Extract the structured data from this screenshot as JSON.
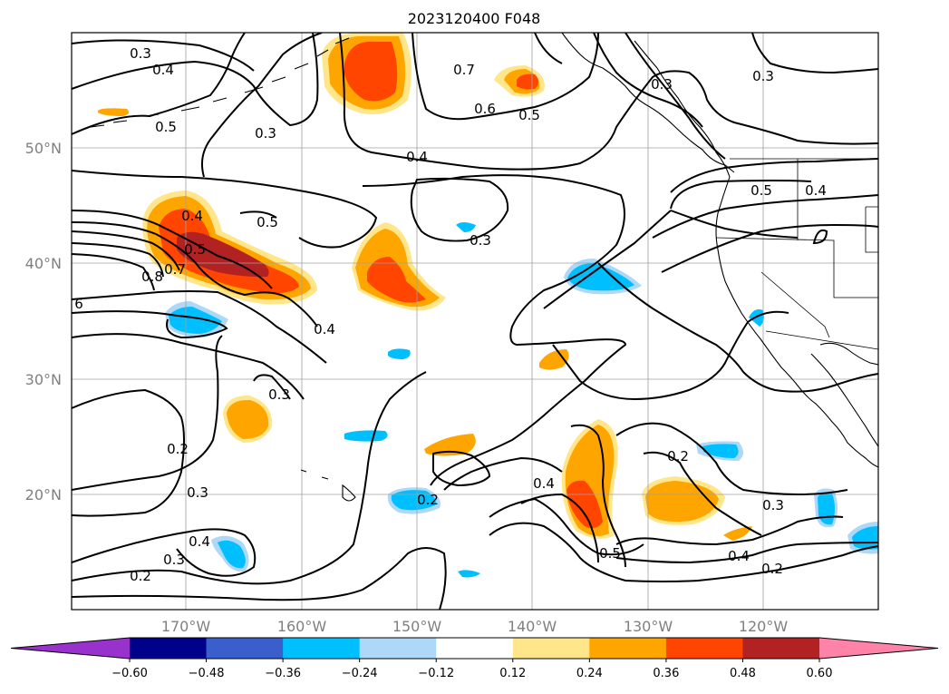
{
  "title": "2023120400 F048",
  "lat_labels": [
    "50°N",
    "40°N",
    "30°N",
    "20°N"
  ],
  "lon_labels": [
    "170°W",
    "160°W",
    "150°W",
    "140°W",
    "130°W",
    "120°W"
  ],
  "colorbar": {
    "tick_labels": [
      "−0.60",
      "−0.48",
      "−0.36",
      "−0.24",
      "−0.12",
      "0.12",
      "0.24",
      "0.36",
      "0.48",
      "0.60"
    ],
    "colors": [
      "#9932cc",
      "#00008b",
      "#3a5fcd",
      "#00bfff",
      "#add8f7",
      "#ffffff",
      "#ffe68a",
      "#ffa500",
      "#ff4500",
      "#b22222",
      "#ff82a8"
    ],
    "extend": "both"
  },
  "contour_labels": [
    "0.3",
    "0.4",
    "0.5",
    "0.3",
    "0.4",
    "0.7",
    "0.6",
    "0.5",
    "0.3",
    "0.3",
    "0.5",
    "0.4",
    "0.5",
    "0.4",
    "0.5",
    "0.7",
    "0.8",
    "6",
    "0.3",
    "0.4",
    "0.3",
    "0.2",
    "0.3",
    "0.4",
    "0.3",
    "0.2",
    "0.2",
    "0.4",
    "0.2",
    "0.3",
    "0.5",
    "0.4",
    "0.2"
  ]
}
